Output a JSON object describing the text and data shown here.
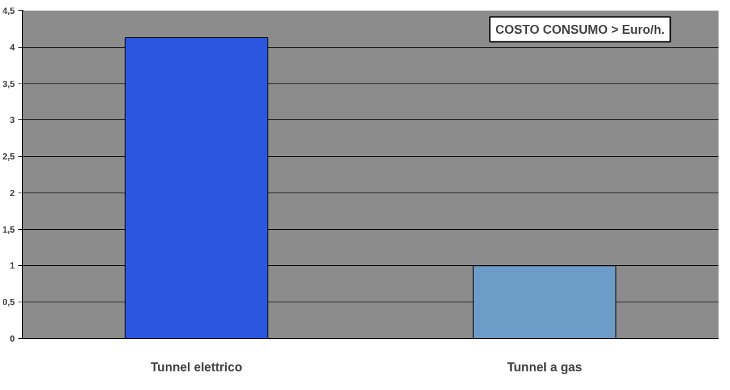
{
  "chart_data": {
    "type": "bar",
    "title": "COSTO CONSUMO > Euro/h.",
    "categories": [
      "Tunnel elettrico",
      "Tunnel a gas"
    ],
    "values": [
      4.13,
      1.0
    ],
    "colors": [
      "#2b57e0",
      "#6e9cc8"
    ],
    "ylim": [
      0,
      4.5
    ],
    "yticks": [
      0,
      {
        "value": 0.5,
        "label": "0,5"
      },
      1,
      {
        "value": 1.5,
        "label": "1,5"
      },
      2,
      {
        "value": 2.5,
        "label": "2,5"
      },
      3,
      {
        "value": 3.5,
        "label": "3,5"
      },
      4,
      {
        "value": 4.5,
        "label": "4,5"
      }
    ],
    "grid": "y"
  }
}
